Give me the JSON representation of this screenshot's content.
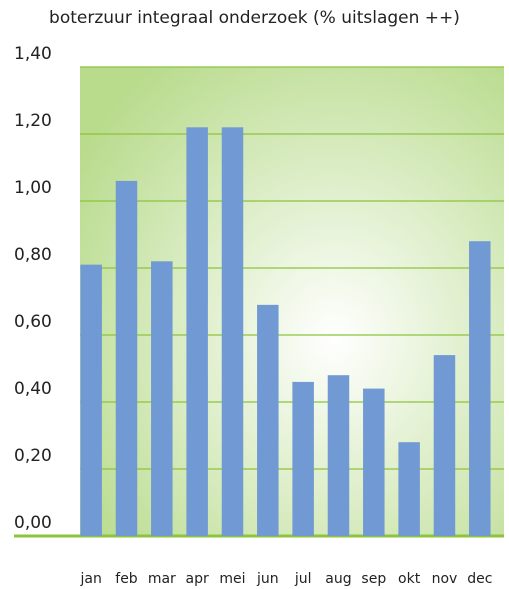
{
  "chart_data": {
    "type": "bar",
    "title": "boterzuur integraal onderzoek (% uitslagen ++)",
    "xlabel": "",
    "ylabel": "",
    "categories": [
      "jan",
      "feb",
      "mar",
      "apr",
      "mei",
      "jun",
      "jul",
      "aug",
      "sep",
      "okt",
      "nov",
      "dec"
    ],
    "values": [
      0.81,
      1.06,
      0.82,
      1.22,
      1.22,
      0.69,
      0.46,
      0.48,
      0.44,
      0.28,
      0.54,
      0.88
    ],
    "ylim": [
      0,
      1.4
    ],
    "y_ticks": [
      "0,00",
      "0,20",
      "0,40",
      "0,60",
      "0,80",
      "1,00",
      "1,20",
      "1,40"
    ],
    "grid": true,
    "legend": "none",
    "colors": {
      "bar": "#7199d3",
      "grid": "#8cc43c",
      "plot_center": "#ffffff",
      "plot_edge": "#b8db8c"
    }
  }
}
